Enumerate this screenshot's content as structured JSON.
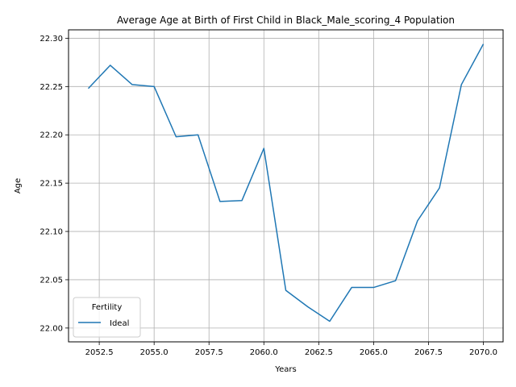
{
  "chart_data": {
    "type": "line",
    "title": "Average Age at Birth of First Child in Black_Male_scoring_4 Population",
    "xlabel": "Years",
    "ylabel": "Age",
    "xlim": [
      2051.1,
      2070.9
    ],
    "ylim": [
      21.9857,
      22.3087
    ],
    "xticks": [
      2052.5,
      2055.0,
      2057.5,
      2060.0,
      2062.5,
      2065.0,
      2067.5,
      2070.0
    ],
    "xtick_labels": [
      "2052.5",
      "2055.0",
      "2057.5",
      "2060.0",
      "2062.5",
      "2065.0",
      "2067.5",
      "2070.0"
    ],
    "yticks": [
      22.0,
      22.05,
      22.1,
      22.15,
      22.2,
      22.25,
      22.3
    ],
    "ytick_labels": [
      "22.00",
      "22.05",
      "22.10",
      "22.15",
      "22.20",
      "22.25",
      "22.30"
    ],
    "grid": true,
    "legend": {
      "title": "Fertility",
      "position": "lower-left"
    },
    "series": [
      {
        "name": "Ideal",
        "color": "#1f77b4",
        "x": [
          2052,
          2053,
          2054,
          2055,
          2056,
          2057,
          2058,
          2059,
          2060,
          2061,
          2062,
          2063,
          2064,
          2065,
          2066,
          2067,
          2068,
          2069,
          2070
        ],
        "values": [
          22.248,
          22.272,
          22.252,
          22.25,
          22.198,
          22.2,
          22.131,
          22.132,
          22.186,
          22.039,
          22.022,
          22.007,
          22.042,
          22.042,
          22.049,
          22.111,
          22.145,
          22.252,
          22.294
        ]
      }
    ]
  }
}
